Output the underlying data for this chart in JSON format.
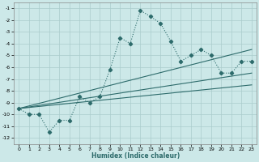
{
  "xlabel": "Humidex (Indice chaleur)",
  "background_color": "#cce8e8",
  "grid_color": "#aacccc",
  "line_color": "#2d6b6b",
  "xlim": [
    -0.5,
    23.5
  ],
  "ylim": [
    -12.5,
    -0.5
  ],
  "xticks": [
    0,
    1,
    2,
    3,
    4,
    5,
    6,
    7,
    8,
    9,
    10,
    11,
    12,
    13,
    14,
    15,
    16,
    17,
    18,
    19,
    20,
    21,
    22,
    23
  ],
  "yticks": [
    -12,
    -11,
    -10,
    -9,
    -8,
    -7,
    -6,
    -5,
    -4,
    -3,
    -2,
    -1
  ],
  "main_x": [
    0,
    1,
    2,
    3,
    4,
    5,
    6,
    7,
    8,
    9,
    10,
    11,
    12,
    13,
    14,
    15,
    16,
    17,
    18,
    19,
    20,
    21,
    22,
    23
  ],
  "main_y": [
    -9.5,
    -10.0,
    -10.0,
    -11.5,
    -10.5,
    -10.5,
    -8.5,
    -9.0,
    -8.5,
    -6.2,
    -3.5,
    -4.0,
    -1.2,
    -1.7,
    -2.3,
    -3.8,
    -5.5,
    -5.0,
    -4.5,
    -5.0,
    -6.5,
    -6.5,
    -5.5,
    -5.5
  ],
  "line1_x": [
    0,
    23
  ],
  "line1_y": [
    -9.5,
    -6.5
  ],
  "line2_x": [
    0,
    23
  ],
  "line2_y": [
    -9.5,
    -7.5
  ],
  "line3_x": [
    0,
    23
  ],
  "line3_y": [
    -9.5,
    -4.5
  ]
}
